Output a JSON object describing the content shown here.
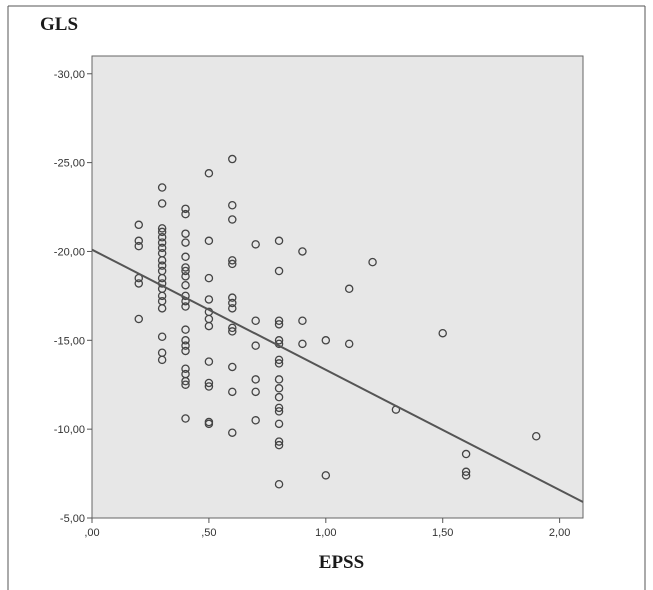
{
  "chart_data": {
    "type": "scatter",
    "ylabel": "GLS",
    "xlabel": "EPSS",
    "xlim": [
      0,
      2.1
    ],
    "ylim": [
      -5,
      -31
    ],
    "x_ticks": [
      0,
      0.5,
      1.0,
      1.5,
      2.0
    ],
    "x_tick_labels": [
      ",00",
      ",50",
      "1,00",
      "1,50",
      "2,00"
    ],
    "y_ticks": [
      -30,
      -25,
      -20,
      -15,
      -10,
      -5
    ],
    "y_tick_labels": [
      "-30,00",
      "-25,00",
      "-20,00",
      "-15,00",
      "-10,00",
      "-5,00"
    ],
    "grid": false,
    "fit_line": {
      "x": [
        0,
        2.1
      ],
      "y": [
        -20.1,
        -5.9
      ]
    },
    "points": [
      [
        0.2,
        -21.5
      ],
      [
        0.2,
        -20.6
      ],
      [
        0.2,
        -20.3
      ],
      [
        0.2,
        -18.5
      ],
      [
        0.2,
        -18.2
      ],
      [
        0.2,
        -16.2
      ],
      [
        0.3,
        -23.6
      ],
      [
        0.3,
        -22.7
      ],
      [
        0.3,
        -21.3
      ],
      [
        0.3,
        -21.1
      ],
      [
        0.3,
        -20.8
      ],
      [
        0.3,
        -20.5
      ],
      [
        0.3,
        -20.2
      ],
      [
        0.3,
        -19.9
      ],
      [
        0.3,
        -19.5
      ],
      [
        0.3,
        -19.2
      ],
      [
        0.3,
        -18.9
      ],
      [
        0.3,
        -18.5
      ],
      [
        0.3,
        -18.2
      ],
      [
        0.3,
        -17.9
      ],
      [
        0.3,
        -17.5
      ],
      [
        0.3,
        -17.2
      ],
      [
        0.3,
        -16.8
      ],
      [
        0.3,
        -15.2
      ],
      [
        0.3,
        -14.3
      ],
      [
        0.3,
        -13.9
      ],
      [
        0.4,
        -22.4
      ],
      [
        0.4,
        -22.1
      ],
      [
        0.4,
        -21.0
      ],
      [
        0.4,
        -20.5
      ],
      [
        0.4,
        -19.7
      ],
      [
        0.4,
        -19.1
      ],
      [
        0.4,
        -18.9
      ],
      [
        0.4,
        -18.6
      ],
      [
        0.4,
        -18.1
      ],
      [
        0.4,
        -17.5
      ],
      [
        0.4,
        -17.2
      ],
      [
        0.4,
        -16.9
      ],
      [
        0.4,
        -15.6
      ],
      [
        0.4,
        -15.0
      ],
      [
        0.4,
        -14.7
      ],
      [
        0.4,
        -14.4
      ],
      [
        0.4,
        -13.4
      ],
      [
        0.4,
        -13.1
      ],
      [
        0.4,
        -12.7
      ],
      [
        0.4,
        -12.5
      ],
      [
        0.4,
        -10.6
      ],
      [
        0.5,
        -24.4
      ],
      [
        0.5,
        -20.6
      ],
      [
        0.5,
        -18.5
      ],
      [
        0.5,
        -17.3
      ],
      [
        0.5,
        -16.6
      ],
      [
        0.5,
        -16.2
      ],
      [
        0.5,
        -15.8
      ],
      [
        0.5,
        -13.8
      ],
      [
        0.5,
        -12.6
      ],
      [
        0.5,
        -12.4
      ],
      [
        0.5,
        -10.4
      ],
      [
        0.5,
        -10.3
      ],
      [
        0.6,
        -25.2
      ],
      [
        0.6,
        -22.6
      ],
      [
        0.6,
        -21.8
      ],
      [
        0.6,
        -19.5
      ],
      [
        0.6,
        -19.3
      ],
      [
        0.6,
        -17.4
      ],
      [
        0.6,
        -17.1
      ],
      [
        0.6,
        -16.8
      ],
      [
        0.6,
        -15.7
      ],
      [
        0.6,
        -15.5
      ],
      [
        0.6,
        -13.5
      ],
      [
        0.6,
        -12.1
      ],
      [
        0.6,
        -9.8
      ],
      [
        0.7,
        -20.4
      ],
      [
        0.7,
        -16.1
      ],
      [
        0.7,
        -14.7
      ],
      [
        0.7,
        -12.8
      ],
      [
        0.7,
        -12.1
      ],
      [
        0.7,
        -10.5
      ],
      [
        0.8,
        -20.6
      ],
      [
        0.8,
        -18.9
      ],
      [
        0.8,
        -16.1
      ],
      [
        0.8,
        -15.9
      ],
      [
        0.8,
        -15.0
      ],
      [
        0.8,
        -14.8
      ],
      [
        0.8,
        -13.9
      ],
      [
        0.8,
        -13.7
      ],
      [
        0.8,
        -12.8
      ],
      [
        0.8,
        -12.3
      ],
      [
        0.8,
        -11.8
      ],
      [
        0.8,
        -11.2
      ],
      [
        0.8,
        -11.0
      ],
      [
        0.8,
        -10.3
      ],
      [
        0.8,
        -9.3
      ],
      [
        0.8,
        -9.1
      ],
      [
        0.8,
        -6.9
      ],
      [
        0.9,
        -20.0
      ],
      [
        0.9,
        -16.1
      ],
      [
        0.9,
        -14.8
      ],
      [
        1.0,
        -15.0
      ],
      [
        1.0,
        -7.4
      ],
      [
        1.1,
        -17.9
      ],
      [
        1.1,
        -14.8
      ],
      [
        1.2,
        -19.4
      ],
      [
        1.3,
        -11.1
      ],
      [
        1.5,
        -15.4
      ],
      [
        1.6,
        -8.6
      ],
      [
        1.6,
        -7.6
      ],
      [
        1.6,
        -7.4
      ],
      [
        1.9,
        -9.6
      ]
    ]
  }
}
